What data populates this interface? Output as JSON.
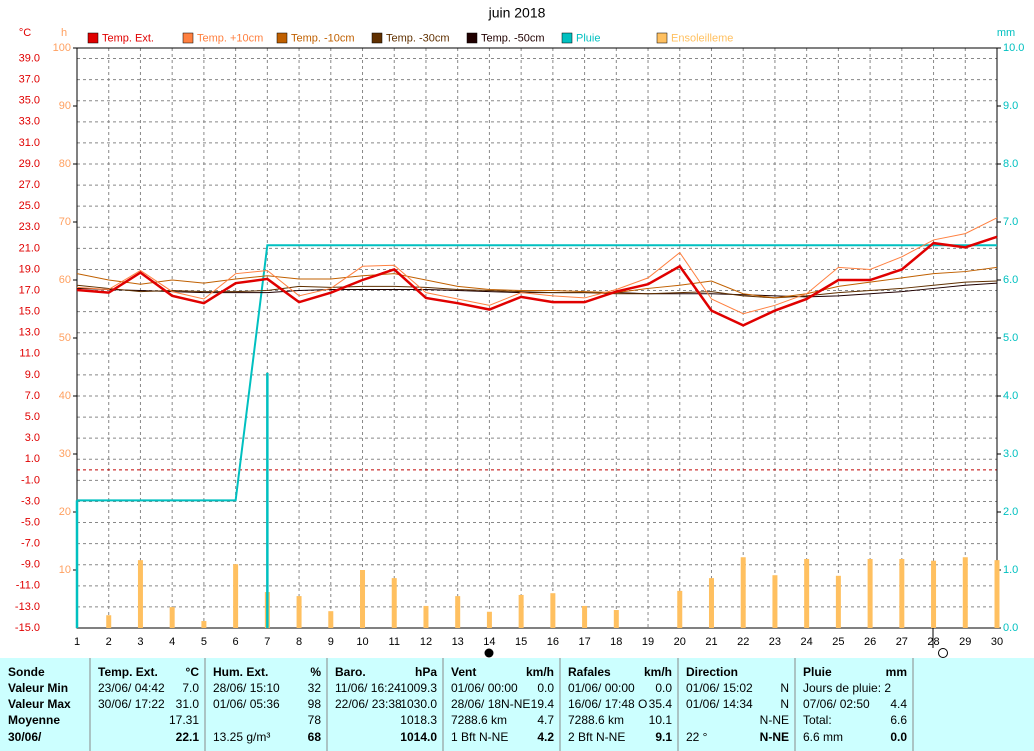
{
  "chart_data": {
    "type": "line",
    "title": "juin 2018",
    "y_unit": "°C",
    "y3_unit": "h",
    "y2_unit": "mm",
    "x": [
      1,
      2,
      3,
      4,
      5,
      6,
      7,
      8,
      9,
      10,
      11,
      12,
      13,
      14,
      15,
      16,
      17,
      18,
      19,
      20,
      21,
      22,
      23,
      24,
      25,
      26,
      27,
      28,
      29,
      30
    ],
    "xlim": [
      1,
      30
    ],
    "xticks": [
      1,
      2,
      3,
      4,
      5,
      6,
      7,
      8,
      9,
      10,
      11,
      12,
      13,
      14,
      15,
      16,
      17,
      18,
      19,
      20,
      21,
      22,
      23,
      24,
      25,
      26,
      27,
      28,
      29,
      30
    ],
    "ylim": [
      -15,
      40
    ],
    "yticks": [
      {
        "value": -15,
        "label": "-15.0"
      },
      {
        "value": -13,
        "label": "-13.0"
      },
      {
        "value": -11,
        "label": "-11.0"
      },
      {
        "value": -9,
        "label": "-9.0"
      },
      {
        "value": -7,
        "label": "-7.0"
      },
      {
        "value": -5,
        "label": "-5.0"
      },
      {
        "value": -3,
        "label": "-3.0"
      },
      {
        "value": -1,
        "label": "-1.0"
      },
      {
        "value": 1,
        "label": "1.0"
      },
      {
        "value": 3,
        "label": "3.0"
      },
      {
        "value": 5,
        "label": "5.0"
      },
      {
        "value": 7,
        "label": "7.0"
      },
      {
        "value": 9,
        "label": "9.0"
      },
      {
        "value": 11,
        "label": "11.0"
      },
      {
        "value": 13,
        "label": "13.0"
      },
      {
        "value": 15,
        "label": "15.0"
      },
      {
        "value": 17,
        "label": "17.0"
      },
      {
        "value": 19,
        "label": "19.0"
      },
      {
        "value": 21,
        "label": "21.0"
      },
      {
        "value": 23,
        "label": "23.0"
      },
      {
        "value": 25,
        "label": "25.0"
      },
      {
        "value": 27,
        "label": "27.0"
      },
      {
        "value": 29,
        "label": "29.0"
      },
      {
        "value": 31,
        "label": "31.0"
      },
      {
        "value": 33,
        "label": "33.0"
      },
      {
        "value": 35,
        "label": "35.0"
      },
      {
        "value": 37,
        "label": "37.0"
      },
      {
        "value": 39,
        "label": "39.0"
      }
    ],
    "y3lim": [
      0,
      100
    ],
    "y3ticks": [
      10,
      20,
      30,
      40,
      50,
      60,
      70,
      80,
      90,
      100
    ],
    "y2lim": [
      0,
      10
    ],
    "y2ticks": [
      {
        "value": 0,
        "label": "0.0"
      },
      {
        "value": 1,
        "label": "1.0"
      },
      {
        "value": 2,
        "label": "2.0"
      },
      {
        "value": 3,
        "label": "3.0"
      },
      {
        "value": 4,
        "label": "4.0"
      },
      {
        "value": 5,
        "label": "5.0"
      },
      {
        "value": 6,
        "label": "6.0"
      },
      {
        "value": 7,
        "label": "7.0"
      },
      {
        "value": 8,
        "label": "8.0"
      },
      {
        "value": 9,
        "label": "9.0"
      },
      {
        "value": 10,
        "label": "10.0"
      }
    ],
    "grid": true,
    "reference_line": 0,
    "series": [
      {
        "name": "Ensoleilleme",
        "type": "bar",
        "axis": "y3",
        "color": "#ffc060",
        "values": [
          0,
          2.2,
          11.7,
          3.6,
          1.2,
          11,
          6.2,
          5.5,
          2.9,
          10,
          8.6,
          3.8,
          5.5,
          2.8,
          5.7,
          6,
          3.8,
          3.1,
          0,
          6.4,
          8.6,
          12.2,
          9.1,
          11.9,
          9,
          11.9,
          11.9,
          11.6,
          12.2,
          11.7
        ]
      },
      {
        "type": "bar",
        "axis": "y2",
        "color": "#00c0c0",
        "values": [
          2.2,
          0,
          0,
          0,
          0,
          0,
          4.4,
          0,
          0,
          0,
          0,
          0,
          0,
          0,
          0,
          0,
          0,
          0,
          0,
          0,
          0,
          0,
          0,
          0,
          0,
          0,
          0,
          0,
          0,
          0
        ]
      },
      {
        "name": "Pluie",
        "type": "line",
        "axis": "y2",
        "color": "#00c0c0",
        "width": 2,
        "values": [
          2.2,
          2.2,
          2.2,
          2.2,
          2.2,
          2.2,
          6.6,
          6.6,
          6.6,
          6.6,
          6.6,
          6.6,
          6.6,
          6.6,
          6.6,
          6.6,
          6.6,
          6.6,
          6.6,
          6.6,
          6.6,
          6.6,
          6.6,
          6.6,
          6.6,
          6.6,
          6.6,
          6.6,
          6.6,
          6.6
        ]
      },
      {
        "name": "Temp. -50cm",
        "type": "line",
        "axis": "y",
        "color": "#200000",
        "width": 1,
        "values": [
          17.2,
          17.1,
          17.0,
          16.9,
          16.8,
          16.8,
          16.8,
          17.0,
          17.1,
          17.1,
          17.1,
          17.1,
          17.0,
          16.9,
          16.8,
          16.8,
          16.8,
          16.8,
          16.7,
          16.7,
          16.7,
          16.6,
          16.5,
          16.4,
          16.5,
          16.7,
          16.9,
          17.2,
          17.5,
          17.7
        ]
      },
      {
        "name": "Temp. -30cm",
        "type": "line",
        "axis": "y",
        "color": "#603000",
        "width": 1,
        "values": [
          17.5,
          17.2,
          16.9,
          17.0,
          16.9,
          16.9,
          17.0,
          17.4,
          17.3,
          17.4,
          17.4,
          17.3,
          17.1,
          17.0,
          16.9,
          16.8,
          16.8,
          16.7,
          16.7,
          16.8,
          16.9,
          16.5,
          16.3,
          16.5,
          16.8,
          17.0,
          17.2,
          17.5,
          17.8,
          17.9
        ]
      },
      {
        "name": "Temp. -10cm",
        "type": "line",
        "axis": "y",
        "color": "#c06000",
        "width": 1,
        "values": [
          18.6,
          18.0,
          17.6,
          18.0,
          17.7,
          18.1,
          18.4,
          18.1,
          18.1,
          18.4,
          18.6,
          18.0,
          17.4,
          17.1,
          17.0,
          17.0,
          16.9,
          16.8,
          17.2,
          17.5,
          17.9,
          16.7,
          16.3,
          16.7,
          17.4,
          17.8,
          18.2,
          18.6,
          18.8,
          19.2
        ]
      },
      {
        "name": "Temp. +10cm",
        "type": "line",
        "axis": "y",
        "color": "#ff8040",
        "width": 1,
        "values": [
          17.3,
          17.1,
          18.9,
          16.9,
          16.2,
          18.6,
          18.9,
          16.5,
          17.2,
          19.3,
          19.4,
          16.8,
          16.2,
          15.6,
          16.8,
          16.5,
          16.3,
          17.1,
          18.2,
          20.6,
          16.2,
          14.8,
          15.6,
          16.7,
          19.2,
          19.0,
          20.2,
          21.8,
          22.4,
          23.9
        ]
      },
      {
        "name": "Temp. Ext.",
        "type": "line",
        "axis": "y",
        "color": "#e00000",
        "width": 2.5,
        "values": [
          17.05,
          16.8,
          18.7,
          16.5,
          15.8,
          17.7,
          18.1,
          15.9,
          16.8,
          18.0,
          19.0,
          16.3,
          15.8,
          15.2,
          16.4,
          15.9,
          15.9,
          16.9,
          17.6,
          19.3,
          15.1,
          13.7,
          15.1,
          16.2,
          18.0,
          18.0,
          19.0,
          21.5,
          21.1,
          22.1
        ]
      }
    ],
    "legend_order": [
      7,
      6,
      5,
      4,
      3,
      2,
      0
    ]
  },
  "table": {
    "columns": [
      {
        "title": "Sonde",
        "rows": [
          {
            "left": "Valeur Min"
          },
          {
            "left": "Valeur Max"
          },
          {
            "left": "Moyenne"
          },
          {
            "left": "30/06/"
          }
        ]
      },
      {
        "title": "Temp. Ext.",
        "unit": "°C",
        "rows": [
          {
            "left": "23/06/  04:42",
            "right": "7.0"
          },
          {
            "left": "30/06/  17:22",
            "right": "31.0"
          },
          {
            "right": "17.31"
          },
          {
            "right": "22.1"
          }
        ]
      },
      {
        "title": "Hum. Ext.",
        "unit": "%",
        "rows": [
          {
            "left": "28/06/  15:10",
            "right": "32"
          },
          {
            "left": "01/06/  05:36",
            "right": "98"
          },
          {
            "right": "78"
          },
          {
            "left": "13.25 g/m³",
            "right": "68"
          }
        ]
      },
      {
        "title": "Baro.",
        "unit": "hPa",
        "rows": [
          {
            "left": "11/06/  16:24",
            "right": "1009.3"
          },
          {
            "left": "22/06/  23:38",
            "right": "1030.0"
          },
          {
            "right": "1018.3"
          },
          {
            "right": "1014.0"
          }
        ]
      },
      {
        "title": "Vent",
        "unit": "km/h",
        "rows": [
          {
            "left": "01/06/  00:00",
            "right": "0.0"
          },
          {
            "left": "28/06/  18N-NE",
            "right": "19.4"
          },
          {
            "left": "7288.6 km",
            "right": "4.7"
          },
          {
            "left": "1 Bft N-NE",
            "right": "4.2"
          }
        ]
      },
      {
        "title": "Rafales",
        "unit": "km/h",
        "rows": [
          {
            "left": "01/06/  00:00",
            "right": "0.0"
          },
          {
            "left": "16/06/  17:48  O",
            "right": "35.4"
          },
          {
            "left": "7288.6 km",
            "right": "10.1"
          },
          {
            "left": "2 Bft N-NE",
            "right": "9.1"
          }
        ]
      },
      {
        "title": "Direction",
        "rows": [
          {
            "left": "01/06/  15:02",
            "right": "N"
          },
          {
            "left": "01/06/  14:34",
            "right": "N"
          },
          {
            "right": "N-NE"
          },
          {
            "left": "22 °",
            "right": "N-NE"
          }
        ]
      },
      {
        "title": "Pluie",
        "unit": "mm",
        "rows": [
          {
            "left": "Jours de pluie: 2"
          },
          {
            "left": "07/06/  02:50",
            "right": "4.4"
          },
          {
            "left": "Total:",
            "right": "6.6"
          },
          {
            "left": "6.6 mm",
            "right": "0.0"
          }
        ]
      }
    ]
  }
}
